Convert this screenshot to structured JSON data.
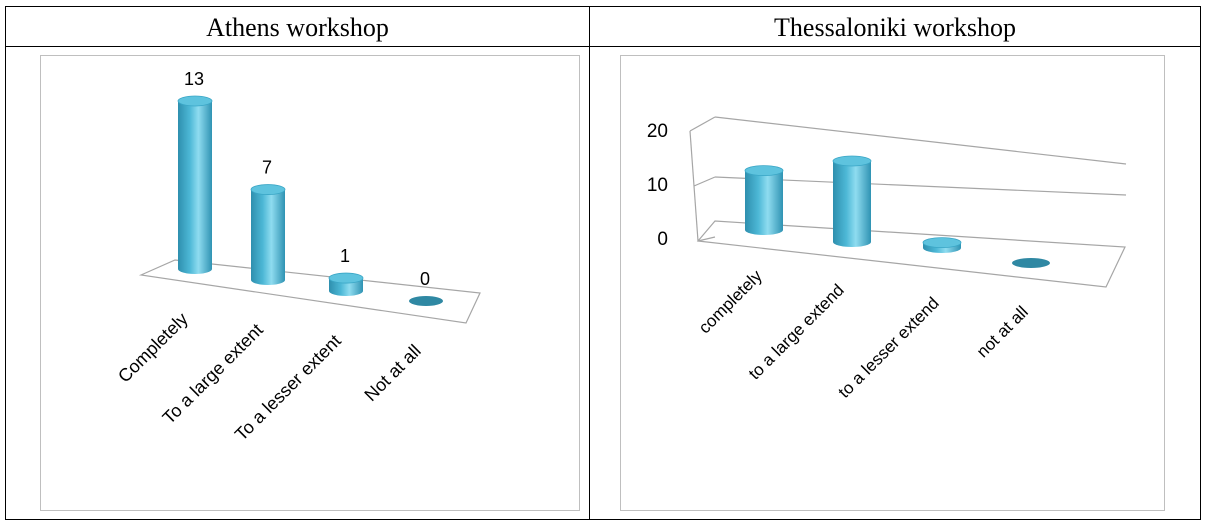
{
  "table": {
    "headers": [
      "Athens workshop",
      "Thessaloniki workshop"
    ]
  },
  "chart_data": [
    {
      "type": "bar",
      "title": "",
      "categories": [
        "Completely",
        "To a large extent",
        "To a lesser extent",
        "Not at all"
      ],
      "values": [
        13,
        7,
        1,
        0
      ],
      "data_labels": [
        "13",
        "7",
        "1",
        "0"
      ],
      "style": "3d-cylinder",
      "bar_color": "#4db8d6",
      "y_axis_shown": false,
      "grid": false,
      "xlabel": "",
      "ylabel": ""
    },
    {
      "type": "bar",
      "title": "",
      "categories": [
        "completely",
        "to a large extend",
        "to a lesser extend",
        "not at all"
      ],
      "values": [
        11,
        15,
        1,
        0
      ],
      "y_ticks": [
        "0",
        "10",
        "20"
      ],
      "ylim": [
        0,
        20
      ],
      "style": "3d-cylinder",
      "bar_color": "#4db8d6",
      "grid": true,
      "xlabel": "",
      "ylabel": ""
    }
  ]
}
